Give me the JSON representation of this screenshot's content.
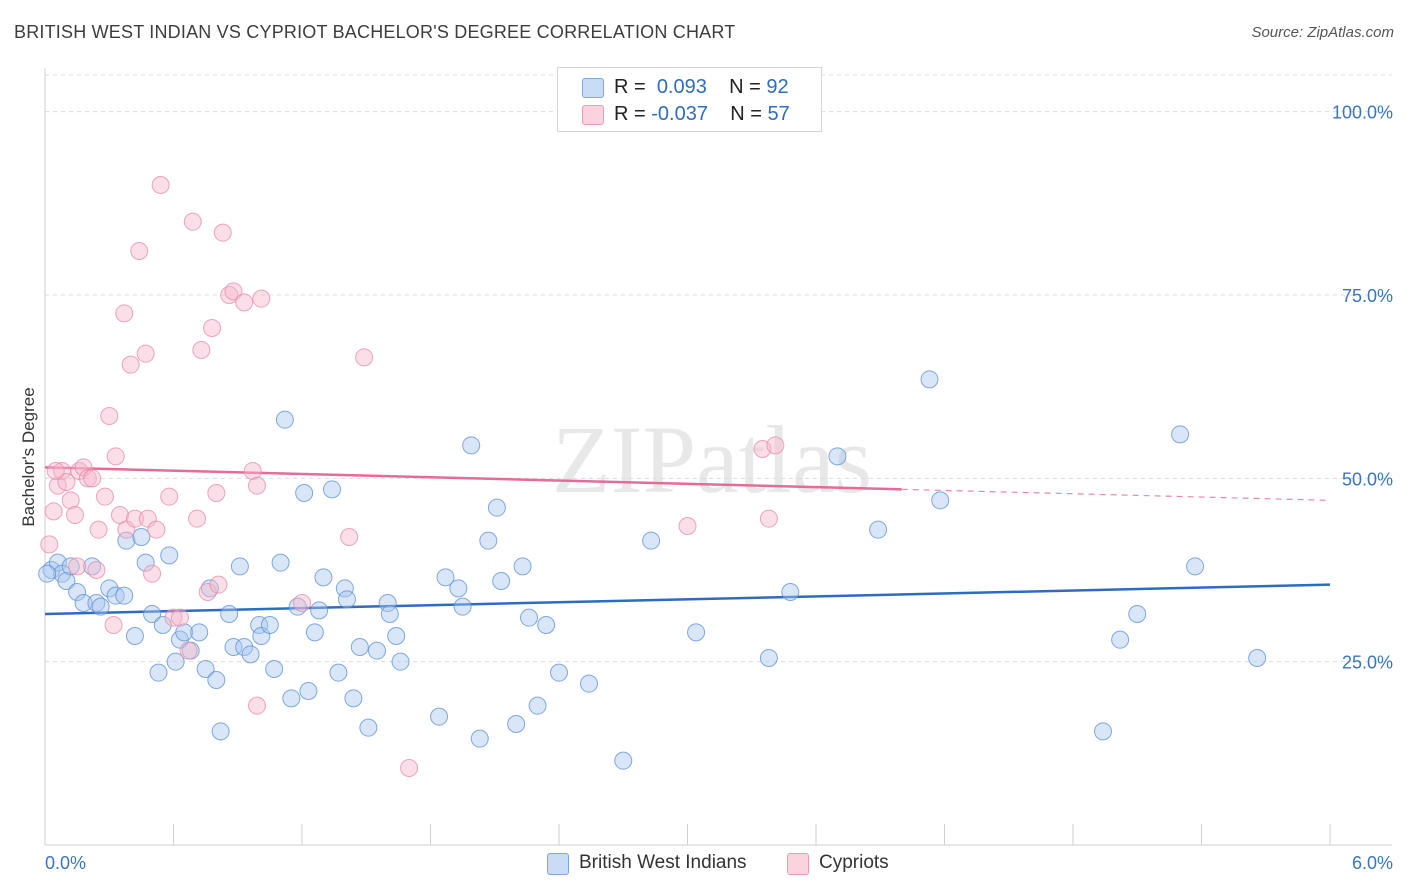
{
  "title": "BRITISH WEST INDIAN VS CYPRIOT BACHELOR'S DEGREE CORRELATION CHART",
  "source": "Source: ZipAtlas.com",
  "watermark": "ZIPatlas",
  "legend": {
    "rows": [
      {
        "r_label": "R =",
        "r_value": "0.093",
        "n_label": "N =",
        "n_value": "92",
        "color": "#a9c8f0"
      },
      {
        "r_label": "R =",
        "r_value": "-0.037",
        "n_label": "N =",
        "n_value": "57",
        "color": "#f6b8cc"
      }
    ]
  },
  "chart_data": {
    "type": "scatter",
    "xlabel": "",
    "ylabel": "Bachelor's Degree",
    "xlim": [
      0,
      6
    ],
    "ylim": [
      0,
      105
    ],
    "x_tick_labels": [
      "0.0%",
      "6.0%"
    ],
    "y_ticks": [
      25,
      50,
      75,
      100
    ],
    "y_tick_labels": [
      "25.0%",
      "50.0%",
      "75.0%",
      "100.0%"
    ],
    "grid": "horizontal dashed",
    "legend_placement": "bottom-center",
    "series": [
      {
        "name": "British West Indians",
        "color": "#a9c8f0",
        "stroke": "#5b8fd4",
        "trend": {
          "x": [
            0,
            6
          ],
          "y": [
            31.5,
            35.5
          ],
          "color": "#2e6cc4"
        },
        "points": [
          [
            0.03,
            37.5
          ],
          [
            0.06,
            38.5
          ],
          [
            0.08,
            37
          ],
          [
            0.1,
            36
          ],
          [
            0.12,
            38
          ],
          [
            0.15,
            34.5
          ],
          [
            0.18,
            33
          ],
          [
            0.22,
            38
          ],
          [
            0.24,
            33
          ],
          [
            0.26,
            32.5
          ],
          [
            0.3,
            35
          ],
          [
            0.33,
            34
          ],
          [
            0.37,
            34
          ],
          [
            0.38,
            41.5
          ],
          [
            0.42,
            28.5
          ],
          [
            0.45,
            42
          ],
          [
            0.47,
            38.5
          ],
          [
            0.5,
            31.5
          ],
          [
            0.53,
            23.5
          ],
          [
            0.55,
            30
          ],
          [
            0.58,
            39.5
          ],
          [
            0.61,
            25
          ],
          [
            0.63,
            28
          ],
          [
            0.65,
            29
          ],
          [
            0.68,
            26.5
          ],
          [
            0.72,
            29
          ],
          [
            0.75,
            24
          ],
          [
            0.77,
            35
          ],
          [
            0.8,
            22.5
          ],
          [
            0.82,
            15.5
          ],
          [
            0.86,
            31.5
          ],
          [
            0.88,
            27
          ],
          [
            0.91,
            38
          ],
          [
            0.93,
            27
          ],
          [
            0.96,
            26
          ],
          [
            1.0,
            30
          ],
          [
            1.01,
            28.5
          ],
          [
            1.05,
            30
          ],
          [
            1.07,
            24
          ],
          [
            1.1,
            38.5
          ],
          [
            1.12,
            58
          ],
          [
            1.15,
            20
          ],
          [
            1.18,
            32.5
          ],
          [
            1.21,
            48
          ],
          [
            1.23,
            21
          ],
          [
            1.26,
            29
          ],
          [
            1.28,
            32
          ],
          [
            1.3,
            36.5
          ],
          [
            1.34,
            48.5
          ],
          [
            1.37,
            23.5
          ],
          [
            1.4,
            35
          ],
          [
            1.41,
            33.5
          ],
          [
            1.44,
            20
          ],
          [
            1.47,
            27
          ],
          [
            1.51,
            16
          ],
          [
            1.55,
            26.5
          ],
          [
            1.6,
            33
          ],
          [
            1.61,
            31.5
          ],
          [
            1.64,
            28.5
          ],
          [
            1.66,
            25
          ],
          [
            1.84,
            17.5
          ],
          [
            1.87,
            36.5
          ],
          [
            1.93,
            35
          ],
          [
            1.95,
            32.5
          ],
          [
            1.99,
            54.5
          ],
          [
            2.03,
            14.5
          ],
          [
            2.07,
            41.5
          ],
          [
            2.11,
            46
          ],
          [
            2.13,
            36
          ],
          [
            2.2,
            16.5
          ],
          [
            2.23,
            38
          ],
          [
            2.26,
            31
          ],
          [
            2.3,
            19
          ],
          [
            2.34,
            30
          ],
          [
            2.4,
            23.5
          ],
          [
            2.54,
            22
          ],
          [
            2.7,
            11.5
          ],
          [
            2.83,
            41.5
          ],
          [
            3.04,
            29
          ],
          [
            3.38,
            25.5
          ],
          [
            3.48,
            34.5
          ],
          [
            3.7,
            53
          ],
          [
            3.89,
            43
          ],
          [
            4.13,
            63.5
          ],
          [
            4.18,
            47
          ],
          [
            4.94,
            15.5
          ],
          [
            5.02,
            28
          ],
          [
            5.1,
            31.5
          ],
          [
            5.3,
            56
          ],
          [
            5.37,
            38
          ],
          [
            5.66,
            25.5
          ],
          [
            0.01,
            37
          ]
        ]
      },
      {
        "name": "Cypriots",
        "color": "#f6b8cc",
        "stroke": "#e88aa6",
        "trend": {
          "x": [
            0,
            4.0
          ],
          "y": [
            51.5,
            48.5
          ],
          "dash_to": [
            6,
            47
          ],
          "color": "#e86a98"
        },
        "points": [
          [
            0.02,
            41
          ],
          [
            0.04,
            45.5
          ],
          [
            0.06,
            49
          ],
          [
            0.08,
            51
          ],
          [
            0.1,
            49.5
          ],
          [
            0.12,
            47
          ],
          [
            0.14,
            45
          ],
          [
            0.16,
            51
          ],
          [
            0.18,
            51.5
          ],
          [
            0.2,
            50
          ],
          [
            0.22,
            50
          ],
          [
            0.24,
            37.5
          ],
          [
            0.25,
            43
          ],
          [
            0.28,
            47.5
          ],
          [
            0.3,
            58.5
          ],
          [
            0.32,
            30
          ],
          [
            0.33,
            53
          ],
          [
            0.35,
            45
          ],
          [
            0.37,
            72.5
          ],
          [
            0.38,
            43
          ],
          [
            0.4,
            65.5
          ],
          [
            0.42,
            44.5
          ],
          [
            0.44,
            81
          ],
          [
            0.47,
            67
          ],
          [
            0.48,
            44.5
          ],
          [
            0.5,
            37
          ],
          [
            0.52,
            43
          ],
          [
            0.54,
            90
          ],
          [
            0.58,
            47.5
          ],
          [
            0.6,
            31
          ],
          [
            0.63,
            31
          ],
          [
            0.67,
            26.5
          ],
          [
            0.69,
            85
          ],
          [
            0.71,
            44.5
          ],
          [
            0.73,
            67.5
          ],
          [
            0.76,
            34.5
          ],
          [
            0.78,
            70.5
          ],
          [
            0.8,
            48
          ],
          [
            0.81,
            35.5
          ],
          [
            0.83,
            83.5
          ],
          [
            0.86,
            75
          ],
          [
            0.88,
            75.5
          ],
          [
            0.93,
            74
          ],
          [
            0.97,
            51
          ],
          [
            0.99,
            49
          ],
          [
            0.99,
            19
          ],
          [
            1.01,
            74.5
          ],
          [
            1.2,
            33
          ],
          [
            1.42,
            42
          ],
          [
            1.49,
            66.5
          ],
          [
            1.7,
            10.5
          ],
          [
            3.0,
            43.5
          ],
          [
            3.35,
            54
          ],
          [
            3.41,
            54.5
          ],
          [
            3.38,
            44.5
          ],
          [
            0.05,
            51
          ],
          [
            0.15,
            38
          ]
        ]
      }
    ]
  }
}
